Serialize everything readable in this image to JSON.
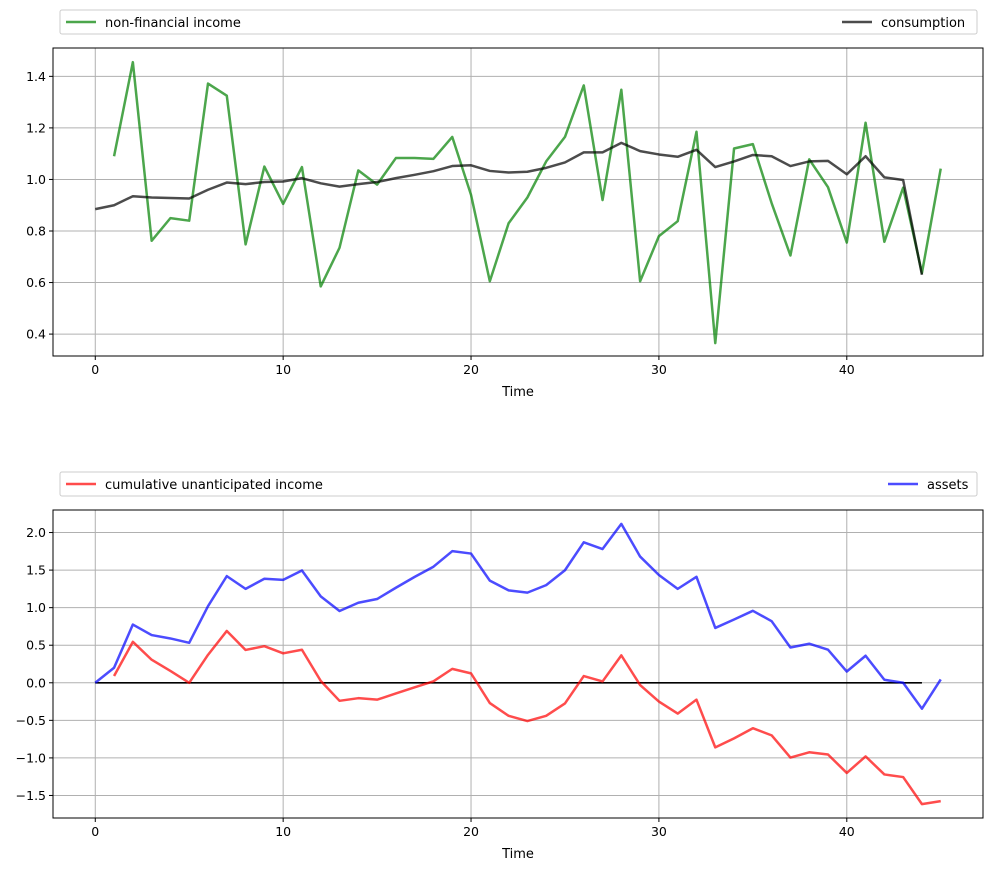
{
  "chart_data": [
    {
      "type": "line",
      "title": "",
      "xlabel": "Time",
      "ylabel": "",
      "xlim": [
        -2.25,
        47.25
      ],
      "ylim": [
        0.315,
        1.51
      ],
      "xticks": [
        0,
        10,
        20,
        30,
        40
      ],
      "yticks": [
        0.4,
        0.6,
        0.8,
        1.0,
        1.2,
        1.4
      ],
      "ytick_labels": [
        "0.4",
        "0.6",
        "0.8",
        "1.0",
        "1.2",
        "1.4"
      ],
      "grid": true,
      "legend_placement": "above, spanning full width",
      "series": [
        {
          "name": "non-financial income",
          "color": "#008000",
          "opacity": 0.7,
          "x_start": 1,
          "values": [
            1.09,
            1.455,
            0.762,
            0.85,
            0.84,
            1.372,
            1.325,
            0.748,
            1.05,
            0.905,
            1.048,
            0.585,
            0.735,
            1.035,
            0.98,
            1.083,
            1.083,
            1.08,
            1.165,
            0.94,
            0.605,
            0.83,
            0.93,
            1.07,
            1.165,
            1.365,
            0.92,
            1.348,
            0.605,
            0.78,
            0.838,
            1.185,
            0.365,
            1.12,
            1.137,
            0.908,
            0.705,
            1.078,
            0.97,
            0.755,
            1.22,
            0.758,
            0.968,
            0.637,
            1.042
          ]
        },
        {
          "name": "consumption",
          "color": "#000000",
          "opacity": 0.7,
          "x_start": 0,
          "values": [
            0.885,
            0.9,
            0.935,
            0.93,
            0.928,
            0.926,
            0.96,
            0.988,
            0.982,
            0.99,
            0.992,
            1.005,
            0.985,
            0.972,
            0.982,
            0.99,
            1.005,
            1.018,
            1.032,
            1.052,
            1.055,
            1.033,
            1.027,
            1.03,
            1.045,
            1.066,
            1.105,
            1.105,
            1.142,
            1.11,
            1.097,
            1.088,
            1.115,
            1.048,
            1.07,
            1.095,
            1.09,
            1.052,
            1.07,
            1.072,
            1.02,
            1.09,
            1.008,
            0.998,
            0.63
          ]
        }
      ]
    },
    {
      "type": "line",
      "title": "",
      "xlabel": "Time",
      "ylabel": "",
      "xlim": [
        -2.25,
        47.25
      ],
      "ylim": [
        -1.8,
        2.3
      ],
      "xticks": [
        0,
        10,
        20,
        30,
        40
      ],
      "yticks": [
        -1.5,
        -1.0,
        -0.5,
        0.0,
        0.5,
        1.0,
        1.5,
        2.0
      ],
      "ytick_labels": [
        "−1.5",
        "−1.0",
        "−0.5",
        "0.0",
        "0.5",
        "1.0",
        "1.5",
        "2.0"
      ],
      "grid": true,
      "legend_placement": "above, spanning full width",
      "zero_line": {
        "x_from": 0,
        "x_to": 44,
        "color": "#000000"
      },
      "series": [
        {
          "name": "cumulative unanticipated income",
          "color": "#ff0000",
          "opacity": 0.7,
          "x_start": 1,
          "values": [
            0.09,
            0.545,
            0.307,
            0.157,
            0.0,
            0.372,
            0.69,
            0.437,
            0.487,
            0.392,
            0.44,
            0.025,
            -0.24,
            -0.205,
            -0.225,
            -0.142,
            -0.06,
            0.02,
            0.185,
            0.125,
            -0.27,
            -0.44,
            -0.51,
            -0.44,
            -0.275,
            0.09,
            0.018,
            0.365,
            -0.03,
            -0.25,
            -0.41,
            -0.225,
            -0.86,
            -0.74,
            -0.605,
            -0.7,
            -0.995,
            -0.925,
            -0.955,
            -1.2,
            -0.98,
            -1.22,
            -1.255,
            -1.615,
            -1.575
          ]
        },
        {
          "name": "assets",
          "color": "#0000ff",
          "opacity": 0.7,
          "x_start": 0,
          "values": [
            0.0,
            0.2,
            0.775,
            0.635,
            0.59,
            0.532,
            1.02,
            1.42,
            1.25,
            1.385,
            1.37,
            1.495,
            1.15,
            0.955,
            1.065,
            1.115,
            1.265,
            1.41,
            1.545,
            1.752,
            1.72,
            1.36,
            1.23,
            1.2,
            1.3,
            1.498,
            1.87,
            1.78,
            2.115,
            1.68,
            1.435,
            1.25,
            1.41,
            0.73,
            0.842,
            0.958,
            0.82,
            0.47,
            0.52,
            0.44,
            0.15,
            0.36,
            0.04,
            0.0,
            -0.345,
            0.045
          ]
        }
      ]
    }
  ]
}
